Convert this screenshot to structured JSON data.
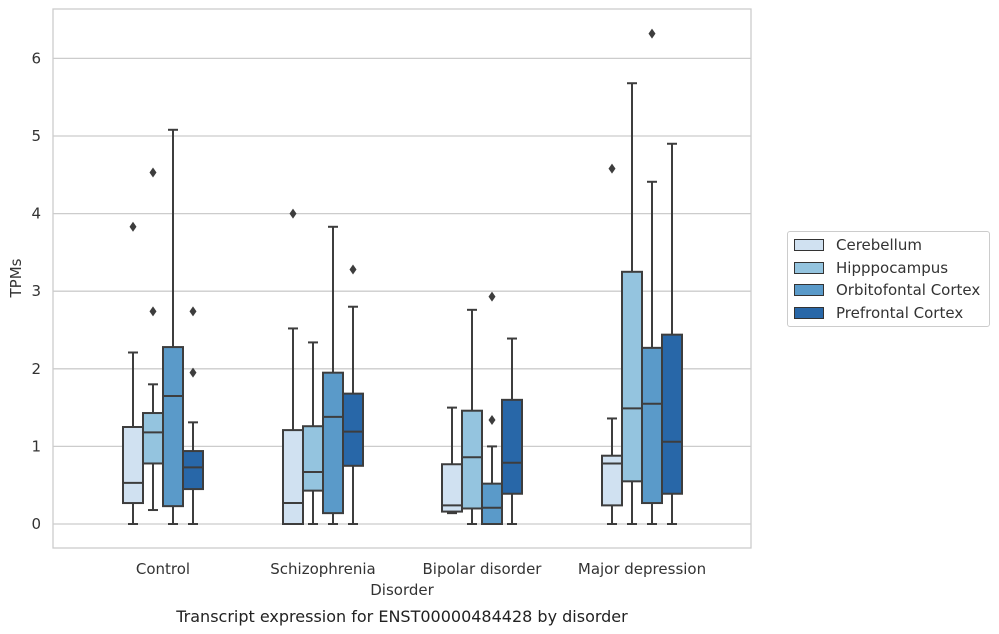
{
  "chart_data": {
    "type": "box",
    "title": "Transcript expression for ENST00000484428 by disorder",
    "xlabel": "Disorder",
    "ylabel": "TPMs",
    "ylim": [
      -0.3,
      6.65
    ],
    "yticks": [
      0,
      1,
      2,
      3,
      4,
      5,
      6
    ],
    "grid": "horizontal",
    "legend_position": "right",
    "categories": [
      "Control",
      "Schizophrenia",
      "Bipolar disorder",
      "Major depression"
    ],
    "series": [
      {
        "name": "Cerebellum",
        "color": "#d0e1f1",
        "boxes": [
          {
            "whislo": 0.0,
            "q1": 0.27,
            "med": 0.53,
            "q3": 1.25,
            "whishi": 2.21,
            "fliers": [
              3.83
            ]
          },
          {
            "whislo": 0.0,
            "q1": 0.0,
            "med": 0.27,
            "q3": 1.21,
            "whishi": 2.52,
            "fliers": [
              4.0
            ]
          },
          {
            "whislo": 0.14,
            "q1": 0.16,
            "med": 0.24,
            "q3": 0.77,
            "whishi": 1.5,
            "fliers": []
          },
          {
            "whislo": 0.0,
            "q1": 0.24,
            "med": 0.78,
            "q3": 0.88,
            "whishi": 1.36,
            "fliers": [
              4.58
            ]
          }
        ]
      },
      {
        "name": "Hipppocampus",
        "color": "#94c4df",
        "boxes": [
          {
            "whislo": 0.18,
            "q1": 0.78,
            "med": 1.18,
            "q3": 1.43,
            "whishi": 1.8,
            "fliers": [
              2.74,
              4.53
            ]
          },
          {
            "whislo": 0.0,
            "q1": 0.43,
            "med": 0.67,
            "q3": 1.26,
            "whishi": 2.34,
            "fliers": []
          },
          {
            "whislo": 0.0,
            "q1": 0.2,
            "med": 0.86,
            "q3": 1.46,
            "whishi": 2.76,
            "fliers": []
          },
          {
            "whislo": 0.0,
            "q1": 0.55,
            "med": 1.49,
            "q3": 3.25,
            "whishi": 5.68,
            "fliers": []
          }
        ]
      },
      {
        "name": "Orbitofontal Cortex",
        "color": "#5a9ac9",
        "boxes": [
          {
            "whislo": 0.0,
            "q1": 0.23,
            "med": 1.65,
            "q3": 2.28,
            "whishi": 5.08,
            "fliers": []
          },
          {
            "whislo": 0.0,
            "q1": 0.14,
            "med": 1.38,
            "q3": 1.95,
            "whishi": 3.83,
            "fliers": []
          },
          {
            "whislo": 0.0,
            "q1": 0.0,
            "med": 0.21,
            "q3": 0.52,
            "whishi": 1.0,
            "fliers": [
              1.34,
              2.93
            ]
          },
          {
            "whislo": 0.0,
            "q1": 0.27,
            "med": 1.55,
            "q3": 2.27,
            "whishi": 4.41,
            "fliers": [
              6.32
            ]
          }
        ]
      },
      {
        "name": "Prefrontal Cortex",
        "color": "#2867a8",
        "boxes": [
          {
            "whislo": 0.0,
            "q1": 0.45,
            "med": 0.73,
            "q3": 0.94,
            "whishi": 1.31,
            "fliers": [
              1.95,
              2.74
            ]
          },
          {
            "whislo": 0.0,
            "q1": 0.75,
            "med": 1.19,
            "q3": 1.68,
            "whishi": 2.8,
            "fliers": [
              3.28
            ]
          },
          {
            "whislo": 0.0,
            "q1": 0.39,
            "med": 0.79,
            "q3": 1.6,
            "whishi": 2.39,
            "fliers": []
          },
          {
            "whislo": 0.0,
            "q1": 0.39,
            "med": 1.06,
            "q3": 2.44,
            "whishi": 4.9,
            "fliers": []
          }
        ]
      }
    ]
  }
}
